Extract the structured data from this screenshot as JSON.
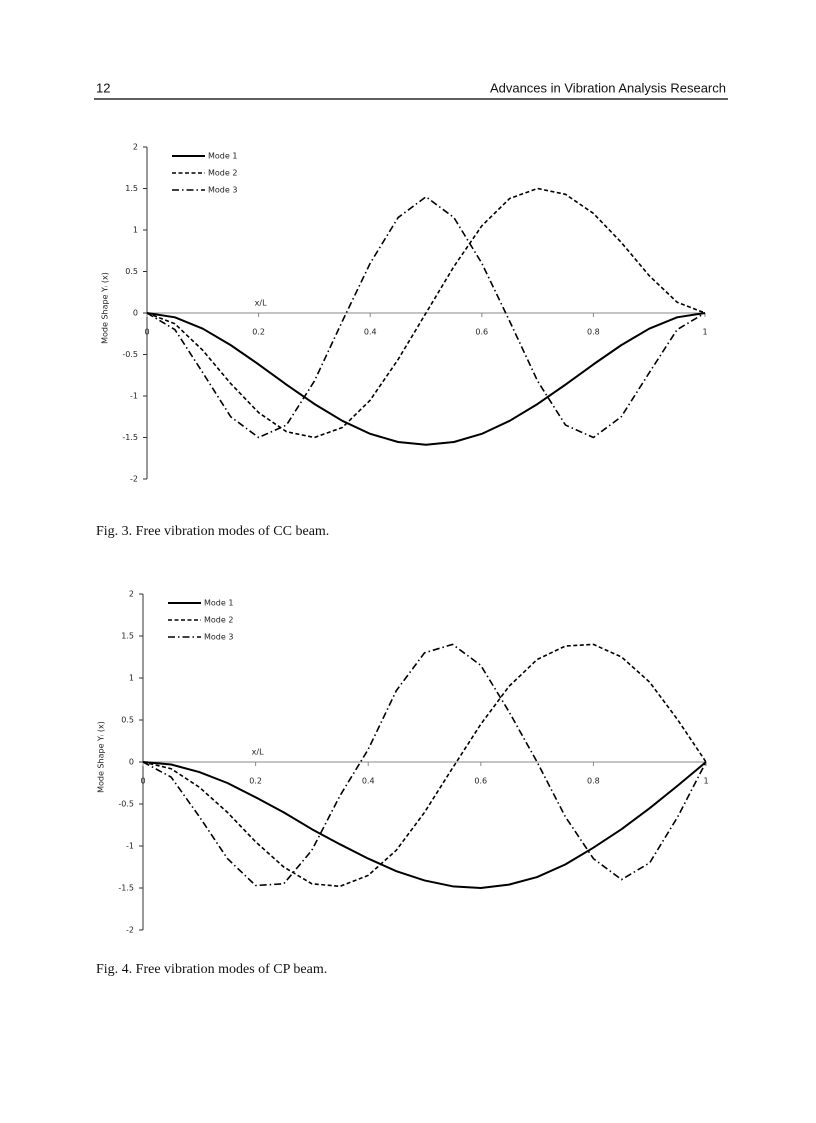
{
  "header": {
    "page_number": "12",
    "title": "Advances in Vibration Analysis Research"
  },
  "chart_data": [
    {
      "type": "line",
      "caption": "Fig. 3. Free vibration modes of CC beam.",
      "x_label": "x/L",
      "y_label": "Mode Shape Yᵢ (x)",
      "x": [
        0,
        0.05,
        0.1,
        0.15,
        0.2,
        0.25,
        0.3,
        0.35,
        0.4,
        0.45,
        0.5,
        0.55,
        0.6,
        0.65,
        0.7,
        0.75,
        0.8,
        0.85,
        0.9,
        0.95,
        1
      ],
      "series": [
        {
          "name": "Mode 1",
          "color": "#000000",
          "dash": "solid",
          "values": [
            0,
            -0.052,
            -0.189,
            -0.387,
            -0.619,
            -0.863,
            -1.096,
            -1.299,
            -1.456,
            -1.554,
            -1.588,
            -1.554,
            -1.456,
            -1.299,
            -1.096,
            -0.863,
            -0.619,
            -0.387,
            -0.189,
            -0.052,
            0
          ]
        },
        {
          "name": "Mode 2",
          "color": "#000000",
          "dash": "dashed",
          "values": [
            0,
            -0.13,
            -0.45,
            -0.85,
            -1.2,
            -1.43,
            -1.5,
            -1.38,
            -1.05,
            -0.56,
            0,
            0.56,
            1.05,
            1.38,
            1.5,
            1.43,
            1.2,
            0.85,
            0.45,
            0.13,
            0
          ]
        },
        {
          "name": "Mode 3",
          "color": "#000000",
          "dash": "dashdot",
          "values": [
            0,
            -0.2,
            -0.72,
            -1.25,
            -1.5,
            -1.35,
            -0.82,
            -0.1,
            0.6,
            1.15,
            1.4,
            1.15,
            0.6,
            -0.1,
            -0.82,
            -1.35,
            -1.5,
            -1.25,
            -0.72,
            -0.2,
            0
          ]
        }
      ],
      "xlim": [
        0,
        1
      ],
      "xticks": [
        0,
        0.2,
        0.4,
        0.6,
        0.8,
        1
      ],
      "ylim": [
        -2,
        2
      ],
      "yticks": [
        -2,
        -1.5,
        -1,
        -0.5,
        0,
        0.5,
        1,
        1.5,
        2
      ],
      "legend": "top-left",
      "grid": false
    },
    {
      "type": "line",
      "caption": "Fig. 4. Free vibration modes of CP beam.",
      "x_label": "x/L",
      "y_label": "Mode Shape Yᵢ (x)",
      "x": [
        0,
        0.05,
        0.1,
        0.15,
        0.2,
        0.25,
        0.3,
        0.35,
        0.4,
        0.45,
        0.5,
        0.55,
        0.6,
        0.65,
        0.7,
        0.75,
        0.8,
        0.85,
        0.9,
        0.95,
        1
      ],
      "series": [
        {
          "name": "Mode 1",
          "color": "#000000",
          "dash": "solid",
          "values": [
            0,
            -0.03,
            -0.12,
            -0.25,
            -0.42,
            -0.6,
            -0.8,
            -0.98,
            -1.15,
            -1.3,
            -1.41,
            -1.48,
            -1.5,
            -1.46,
            -1.37,
            -1.22,
            -1.02,
            -0.8,
            -0.55,
            -0.28,
            0
          ]
        },
        {
          "name": "Mode 2",
          "color": "#000000",
          "dash": "dashed",
          "values": [
            0,
            -0.08,
            -0.3,
            -0.6,
            -0.95,
            -1.25,
            -1.45,
            -1.48,
            -1.35,
            -1.05,
            -0.6,
            -0.07,
            0.45,
            0.9,
            1.22,
            1.38,
            1.4,
            1.25,
            0.95,
            0.5,
            0
          ]
        },
        {
          "name": "Mode 3",
          "color": "#000000",
          "dash": "dashdot",
          "values": [
            0,
            -0.18,
            -0.65,
            -1.15,
            -1.47,
            -1.45,
            -1.05,
            -0.4,
            0.15,
            0.85,
            1.3,
            1.4,
            1.15,
            0.6,
            0,
            -0.65,
            -1.15,
            -1.4,
            -1.2,
            -0.65,
            0
          ]
        }
      ],
      "xlim": [
        0,
        1
      ],
      "xticks": [
        0,
        0.2,
        0.4,
        0.6,
        0.8,
        1
      ],
      "ylim": [
        -2,
        2
      ],
      "yticks": [
        -2,
        -1.5,
        -1,
        -0.5,
        0,
        0.5,
        1,
        1.5,
        2
      ],
      "legend": "top-left",
      "grid": false
    }
  ]
}
